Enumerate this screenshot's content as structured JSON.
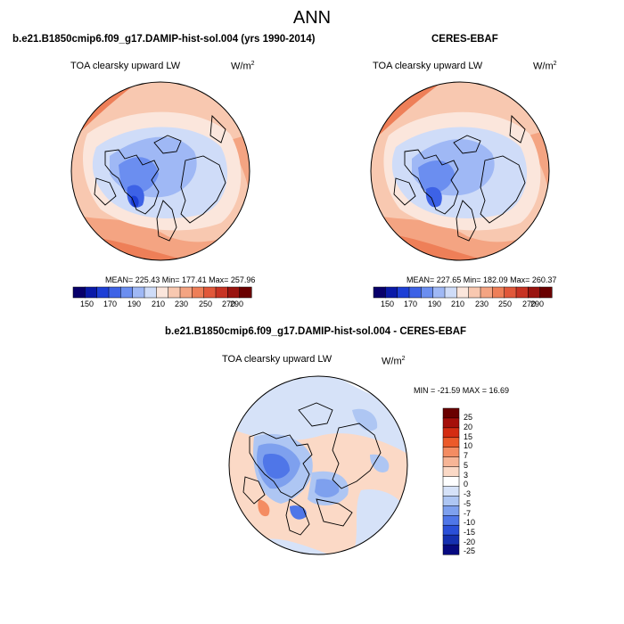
{
  "page_title": "ANN",
  "panels": [
    {
      "title": "b.e21.B1850cmip6.f09_g17.DAMIP-hist-sol.004 (yrs 1990-2014)",
      "variable": "TOA clearsky upward LW",
      "units_base": "W/m",
      "units_exp": "2",
      "stats_text": "MEAN= 225.43  Min= 177.41  Max= 257.96",
      "colorbar_labels": [
        "150",
        "170",
        "190",
        "210",
        "230",
        "250",
        "270",
        "290"
      ]
    },
    {
      "title": "CERES-EBAF",
      "variable": "TOA clearsky upward LW",
      "units_base": "W/m",
      "units_exp": "2",
      "stats_text": "MEAN= 227.65  Min= 182.09  Max= 260.37",
      "colorbar_labels": [
        "150",
        "170",
        "190",
        "210",
        "230",
        "250",
        "270",
        "290"
      ]
    },
    {
      "title": "b.e21.B1850cmip6.f09_g17.DAMIP-hist-sol.004 - CERES-EBAF",
      "variable": "TOA clearsky upward LW",
      "units_base": "W/m",
      "units_exp": "2",
      "stats_text": "MIN = -21.59  MAX =  16.69",
      "colorbar_labels": [
        "25",
        "20",
        "15",
        "10",
        "7",
        "5",
        "3",
        "0",
        "-3",
        "-5",
        "-7",
        "-10",
        "-15",
        "-20",
        "-25"
      ]
    }
  ],
  "colors": {
    "absolute_scale": [
      "#08006b",
      "#0a1aa8",
      "#1d3fd6",
      "#3d62e6",
      "#6b8ef0",
      "#9fb8f5",
      "#cfdcf8",
      "#fbe6dc",
      "#f8c8b0",
      "#f4a482",
      "#ee7f58",
      "#e1583a",
      "#c73323",
      "#99140f",
      "#6a0000"
    ],
    "difference_scale": [
      "#6a0000",
      "#a50f0a",
      "#d42c12",
      "#ec5a2a",
      "#f48c62",
      "#f7b596",
      "#fbd9c6",
      "#ffffff",
      "#d6e2f8",
      "#aec6f3",
      "#7ea0ee",
      "#4f76e8",
      "#2a4fd8",
      "#1530b0",
      "#070a80"
    ],
    "coastline": "#000000"
  }
}
